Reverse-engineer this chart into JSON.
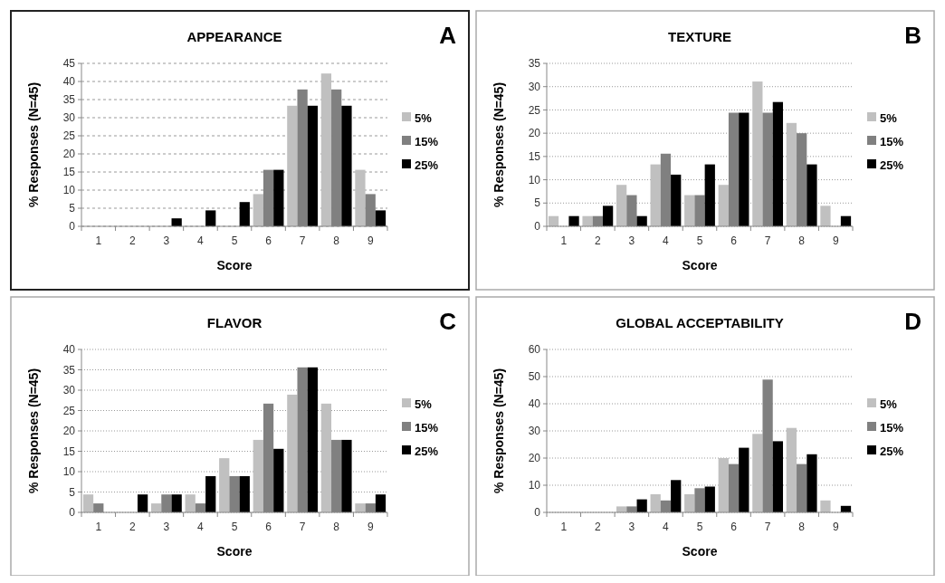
{
  "chart_data": [
    {
      "type": "bar",
      "title": "APPEARANCE",
      "xlabel": "Score",
      "ylabel": "% Responses (N=45)",
      "annotations": [
        "A"
      ],
      "categories": [
        "1",
        "2",
        "3",
        "4",
        "5",
        "6",
        "7",
        "8",
        "9"
      ],
      "series": [
        {
          "name": "5%",
          "color": "#c0c0c0",
          "values": [
            0,
            0,
            0,
            0,
            0,
            8.9,
            33.3,
            42.2,
            15.6
          ]
        },
        {
          "name": "15%",
          "color": "#808080",
          "values": [
            0,
            0,
            0,
            0,
            0,
            15.6,
            37.8,
            37.8,
            8.9
          ]
        },
        {
          "name": "25%",
          "color": "#000000",
          "values": [
            0,
            0,
            2.2,
            4.4,
            6.7,
            15.6,
            33.3,
            33.3,
            4.4
          ]
        }
      ],
      "ylim": [
        0,
        45
      ],
      "yticks": [
        0,
        5,
        10,
        15,
        20,
        25,
        30,
        35,
        40,
        45
      ],
      "grid": "y",
      "legend": "right"
    },
    {
      "type": "bar",
      "title": "TEXTURE",
      "xlabel": "Score",
      "ylabel": "% Responses (N=45)",
      "annotations": [
        "B"
      ],
      "categories": [
        "1",
        "2",
        "3",
        "4",
        "5",
        "6",
        "7",
        "8",
        "9"
      ],
      "series": [
        {
          "name": "5%",
          "color": "#c0c0c0",
          "values": [
            2.2,
            2.2,
            8.9,
            13.3,
            6.7,
            8.9,
            31.1,
            22.2,
            4.4
          ]
        },
        {
          "name": "15%",
          "color": "#808080",
          "values": [
            0,
            2.2,
            6.7,
            15.6,
            6.7,
            24.4,
            24.4,
            20,
            0
          ]
        },
        {
          "name": "25%",
          "color": "#000000",
          "values": [
            2.2,
            4.4,
            2.2,
            11.1,
            13.3,
            24.4,
            26.7,
            13.3,
            2.2
          ]
        }
      ],
      "ylim": [
        0,
        35
      ],
      "yticks": [
        0,
        5,
        10,
        15,
        20,
        25,
        30,
        35
      ],
      "grid": "y",
      "legend": "right"
    },
    {
      "type": "bar",
      "title": "FLAVOR",
      "xlabel": "Score",
      "ylabel": "% Responses (N=45)",
      "annotations": [
        "C"
      ],
      "categories": [
        "1",
        "2",
        "3",
        "4",
        "5",
        "6",
        "7",
        "8",
        "9"
      ],
      "series": [
        {
          "name": "5%",
          "color": "#c0c0c0",
          "values": [
            4.4,
            0,
            2.2,
            4.4,
            13.3,
            17.8,
            28.9,
            26.7,
            2.2
          ]
        },
        {
          "name": "15%",
          "color": "#808080",
          "values": [
            2.2,
            0,
            4.4,
            2.2,
            8.9,
            26.7,
            35.6,
            17.8,
            2.2
          ]
        },
        {
          "name": "25%",
          "color": "#000000",
          "values": [
            0,
            4.4,
            4.4,
            8.9,
            8.9,
            15.6,
            35.6,
            17.8,
            4.4
          ]
        }
      ],
      "ylim": [
        0,
        40
      ],
      "yticks": [
        0,
        5,
        10,
        15,
        20,
        25,
        30,
        35,
        40
      ],
      "grid": "y",
      "legend": "right"
    },
    {
      "type": "bar",
      "title": "GLOBAL ACCEPTABILITY",
      "xlabel": "Score",
      "ylabel": "% Responses (N=45)",
      "annotations": [
        "D"
      ],
      "categories": [
        "1",
        "2",
        "3",
        "4",
        "5",
        "6",
        "7",
        "8",
        "9"
      ],
      "series": [
        {
          "name": "5%",
          "color": "#c0c0c0",
          "values": [
            0,
            0,
            2.2,
            6.7,
            6.7,
            20,
            28.9,
            31.1,
            4.4
          ]
        },
        {
          "name": "15%",
          "color": "#808080",
          "values": [
            0,
            0,
            2.2,
            4.4,
            8.9,
            17.8,
            48.9,
            17.8,
            0
          ]
        },
        {
          "name": "25%",
          "color": "#000000",
          "values": [
            0,
            0,
            4.8,
            11.9,
            9.5,
            23.8,
            26.2,
            21.4,
            2.4
          ]
        }
      ],
      "ylim": [
        0,
        60
      ],
      "yticks": [
        0,
        10,
        20,
        30,
        40,
        50,
        60
      ],
      "grid": "y",
      "legend": "right"
    }
  ]
}
